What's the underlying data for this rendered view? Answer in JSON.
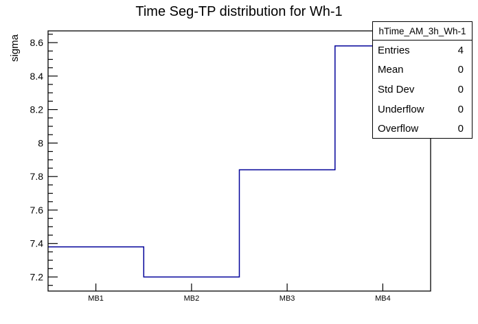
{
  "title": "Time Seg-TP distribution for Wh-1",
  "axes": {
    "y_label": "sigma",
    "x_label": ""
  },
  "stats": {
    "histogram_name": "hTime_AM_3h_Wh-1",
    "rows": [
      {
        "label": "Entries",
        "value": "4"
      },
      {
        "label": "Mean",
        "value": "0"
      },
      {
        "label": "Std Dev",
        "value": "0"
      },
      {
        "label": "Underflow",
        "value": "0"
      },
      {
        "label": "Overflow",
        "value": "0"
      }
    ]
  },
  "colors": {
    "histogram_line": "#000099",
    "frame": "#000000",
    "background": "#ffffff",
    "text": "#000000"
  },
  "chart_data": {
    "type": "line",
    "style": "step-histogram",
    "title": "Time Seg-TP distribution for Wh-1",
    "xlabel": "",
    "ylabel": "sigma",
    "categories": [
      "MB1",
      "MB2",
      "MB3",
      "MB4"
    ],
    "values": [
      7.38,
      7.2,
      7.84,
      8.58
    ],
    "ylim": [
      7.116,
      8.67
    ],
    "yticks": [
      {
        "value": 7.2,
        "label": "7.2"
      },
      {
        "value": 7.4,
        "label": "7.4"
      },
      {
        "value": 7.6,
        "label": "7.6"
      },
      {
        "value": 7.8,
        "label": "7.8"
      },
      {
        "value": 8.0,
        "label": "8"
      },
      {
        "value": 8.2,
        "label": "8.2"
      },
      {
        "value": 8.4,
        "label": "8.4"
      },
      {
        "value": 8.6,
        "label": "8.6"
      }
    ],
    "y_minor_tick_step": 0.05,
    "grid": false,
    "line_color": "#000099",
    "legend": {
      "type": "stats-box",
      "position": "top-right"
    }
  }
}
